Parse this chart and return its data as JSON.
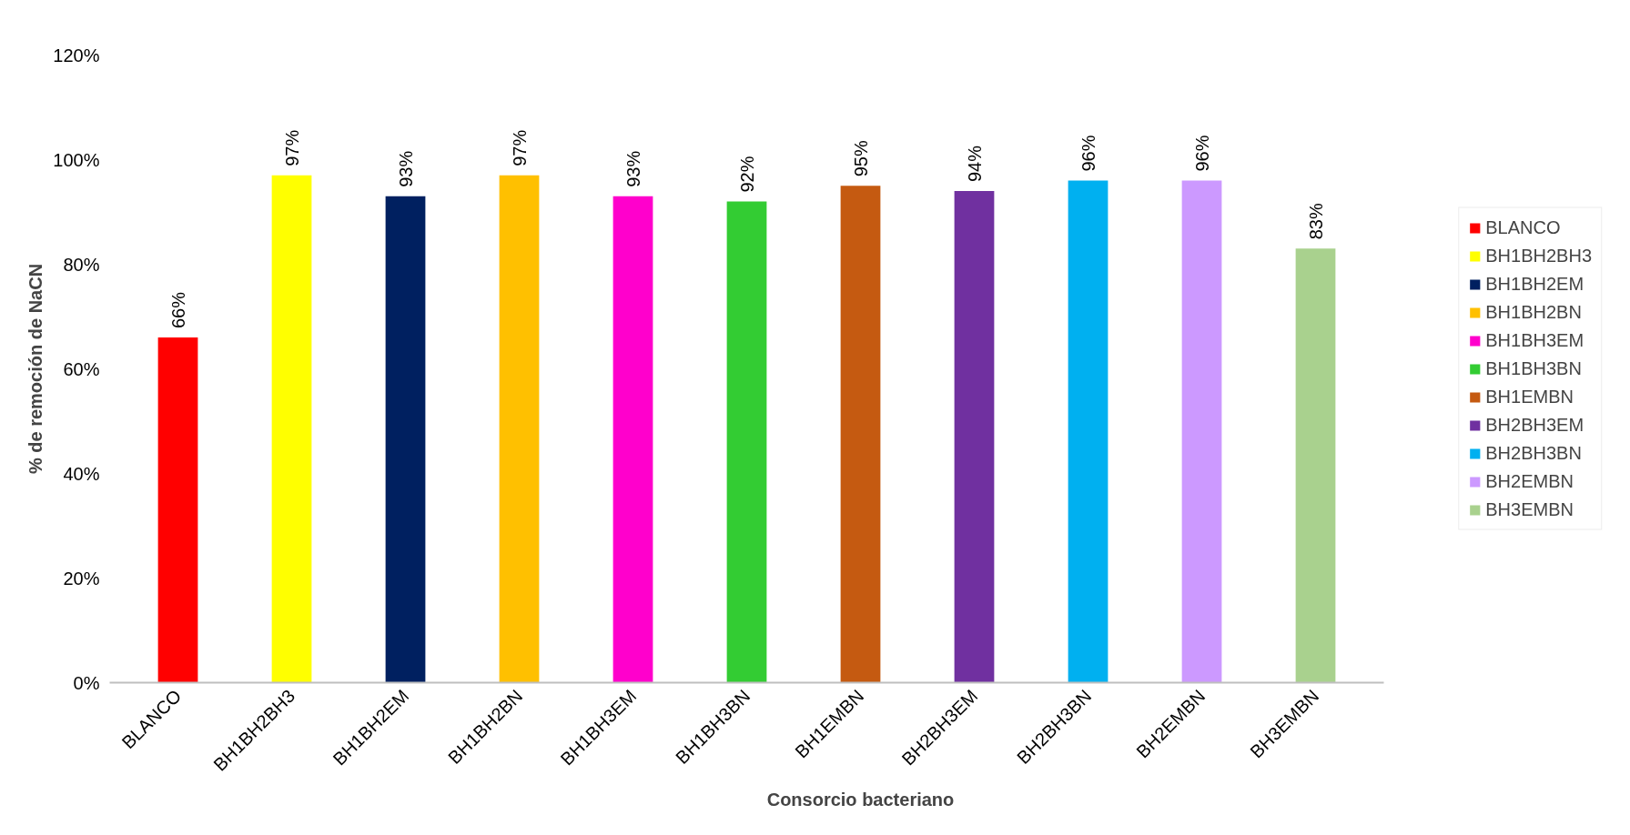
{
  "chart_data": {
    "type": "bar",
    "xlabel": "Consorcio bacteriano",
    "ylabel": "% de remoción de NaCN",
    "categories": [
      "BLANCO",
      "BH1BH2BH3",
      "BH1BH2EM",
      "BH1BH2BN",
      "BH1BH3EM",
      "BH1BH3BN",
      "BH1EMBN",
      "BH2BH3EM",
      "BH2BH3BN",
      "BH2EMBN",
      "BH3EMBN"
    ],
    "series": [
      {
        "name": "BLANCO",
        "color": "#ff0000",
        "values": [
          66,
          null,
          null,
          null,
          null,
          null,
          null,
          null,
          null,
          null,
          null
        ],
        "value_labels": [
          "66%",
          null,
          null,
          null,
          null,
          null,
          null,
          null,
          null,
          null,
          null
        ]
      },
      {
        "name": "BH1BH2BH3",
        "color": "#ffff00",
        "values": [
          null,
          97,
          null,
          null,
          null,
          null,
          null,
          null,
          null,
          null,
          null
        ],
        "value_labels": [
          null,
          "97%",
          null,
          null,
          null,
          null,
          null,
          null,
          null,
          null,
          null
        ]
      },
      {
        "name": "BH1BH2EM",
        "color": "#002060",
        "values": [
          null,
          null,
          93,
          null,
          null,
          null,
          null,
          null,
          null,
          null,
          null
        ],
        "value_labels": [
          null,
          null,
          "93%",
          null,
          null,
          null,
          null,
          null,
          null,
          null,
          null
        ]
      },
      {
        "name": "BH1BH2BN",
        "color": "#ffc000",
        "values": [
          null,
          null,
          null,
          97,
          null,
          null,
          null,
          null,
          null,
          null,
          null
        ],
        "value_labels": [
          null,
          null,
          null,
          "97%",
          null,
          null,
          null,
          null,
          null,
          null,
          null
        ]
      },
      {
        "name": "BH1BH3EM",
        "color": "#ff00cc",
        "values": [
          null,
          null,
          null,
          null,
          93,
          null,
          null,
          null,
          null,
          null,
          null
        ],
        "value_labels": [
          null,
          null,
          null,
          null,
          "93%",
          null,
          null,
          null,
          null,
          null,
          null
        ]
      },
      {
        "name": "BH1BH3BN",
        "color": "#33cc33",
        "values": [
          null,
          null,
          null,
          null,
          null,
          92,
          null,
          null,
          null,
          null,
          null
        ],
        "value_labels": [
          null,
          null,
          null,
          null,
          null,
          "92%",
          null,
          null,
          null,
          null,
          null
        ]
      },
      {
        "name": "BH1EMBN",
        "color": "#c55a11",
        "values": [
          null,
          null,
          null,
          null,
          null,
          null,
          95,
          null,
          null,
          null,
          null
        ],
        "value_labels": [
          null,
          null,
          null,
          null,
          null,
          null,
          "95%",
          null,
          null,
          null,
          null
        ]
      },
      {
        "name": "BH2BH3EM",
        "color": "#7030a0",
        "values": [
          null,
          null,
          null,
          null,
          null,
          null,
          null,
          94,
          null,
          null,
          null
        ],
        "value_labels": [
          null,
          null,
          null,
          null,
          null,
          null,
          null,
          "94%",
          null,
          null,
          null
        ]
      },
      {
        "name": "BH2BH3BN",
        "color": "#00b0f0",
        "values": [
          null,
          null,
          null,
          null,
          null,
          null,
          null,
          null,
          96,
          null,
          null
        ],
        "value_labels": [
          null,
          null,
          null,
          null,
          null,
          null,
          null,
          null,
          "96%",
          null,
          null
        ]
      },
      {
        "name": "BH2EMBN",
        "color": "#cc99ff",
        "values": [
          null,
          null,
          null,
          null,
          null,
          null,
          null,
          null,
          null,
          96,
          null
        ],
        "value_labels": [
          null,
          null,
          null,
          null,
          null,
          null,
          null,
          null,
          null,
          "96%",
          null
        ]
      },
      {
        "name": "BH3EMBN",
        "color": "#a9d18e",
        "values": [
          null,
          null,
          null,
          null,
          null,
          null,
          null,
          null,
          null,
          null,
          83
        ],
        "value_labels": [
          null,
          null,
          null,
          null,
          null,
          null,
          null,
          null,
          null,
          null,
          "83%"
        ]
      }
    ],
    "ylim": [
      0,
      120
    ],
    "yticks": [
      {
        "value": 0,
        "label": "0%"
      },
      {
        "value": 20,
        "label": "20%"
      },
      {
        "value": 40,
        "label": "40%"
      },
      {
        "value": 60,
        "label": "60%"
      },
      {
        "value": 80,
        "label": "80%"
      },
      {
        "value": 100,
        "label": "100%"
      },
      {
        "value": 120,
        "label": "120%"
      }
    ],
    "grid": false,
    "legend": "right"
  }
}
